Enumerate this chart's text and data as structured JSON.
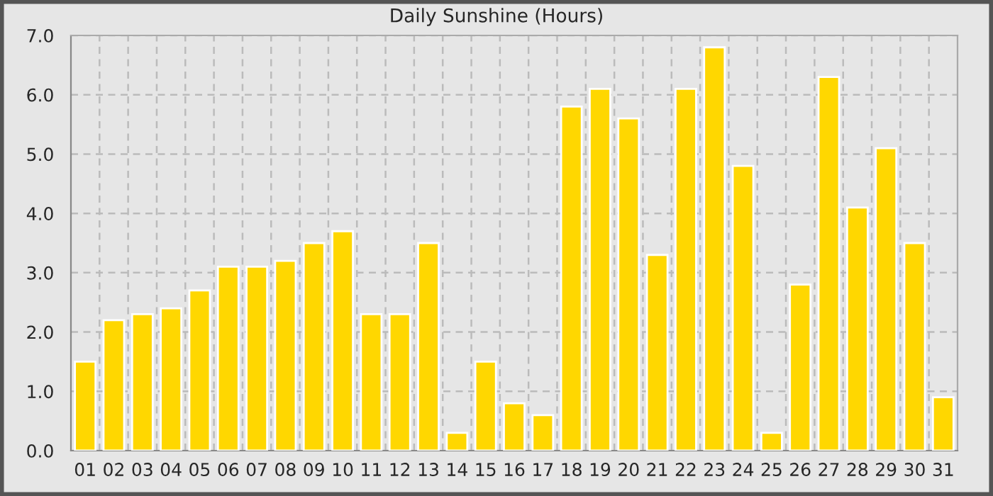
{
  "chart_data": {
    "type": "bar",
    "title": "Daily Sunshine (Hours)",
    "categories": [
      "01",
      "02",
      "03",
      "04",
      "05",
      "06",
      "07",
      "08",
      "09",
      "10",
      "11",
      "12",
      "13",
      "14",
      "15",
      "16",
      "17",
      "18",
      "19",
      "20",
      "21",
      "22",
      "23",
      "24",
      "25",
      "26",
      "27",
      "28",
      "29",
      "30",
      "31"
    ],
    "values": [
      1.5,
      2.2,
      2.3,
      2.4,
      2.7,
      3.1,
      3.1,
      3.2,
      3.5,
      3.7,
      2.3,
      2.3,
      3.5,
      0.3,
      1.5,
      0.8,
      0.6,
      5.8,
      6.1,
      5.6,
      3.3,
      6.1,
      6.8,
      4.8,
      0.3,
      2.8,
      6.3,
      4.1,
      5.1,
      3.5,
      0.9
    ],
    "color": "#ffd700",
    "ylim": [
      0,
      7
    ],
    "yticks": [
      {
        "value": 0,
        "label": "0.0"
      },
      {
        "value": 1,
        "label": "1.0"
      },
      {
        "value": 2,
        "label": "2.0"
      },
      {
        "value": 3,
        "label": "3.0"
      },
      {
        "value": 4,
        "label": "4.0"
      },
      {
        "value": 5,
        "label": "5.0"
      },
      {
        "value": 6,
        "label": "6.0"
      },
      {
        "value": 7,
        "label": "7.0"
      }
    ],
    "grid": true
  }
}
